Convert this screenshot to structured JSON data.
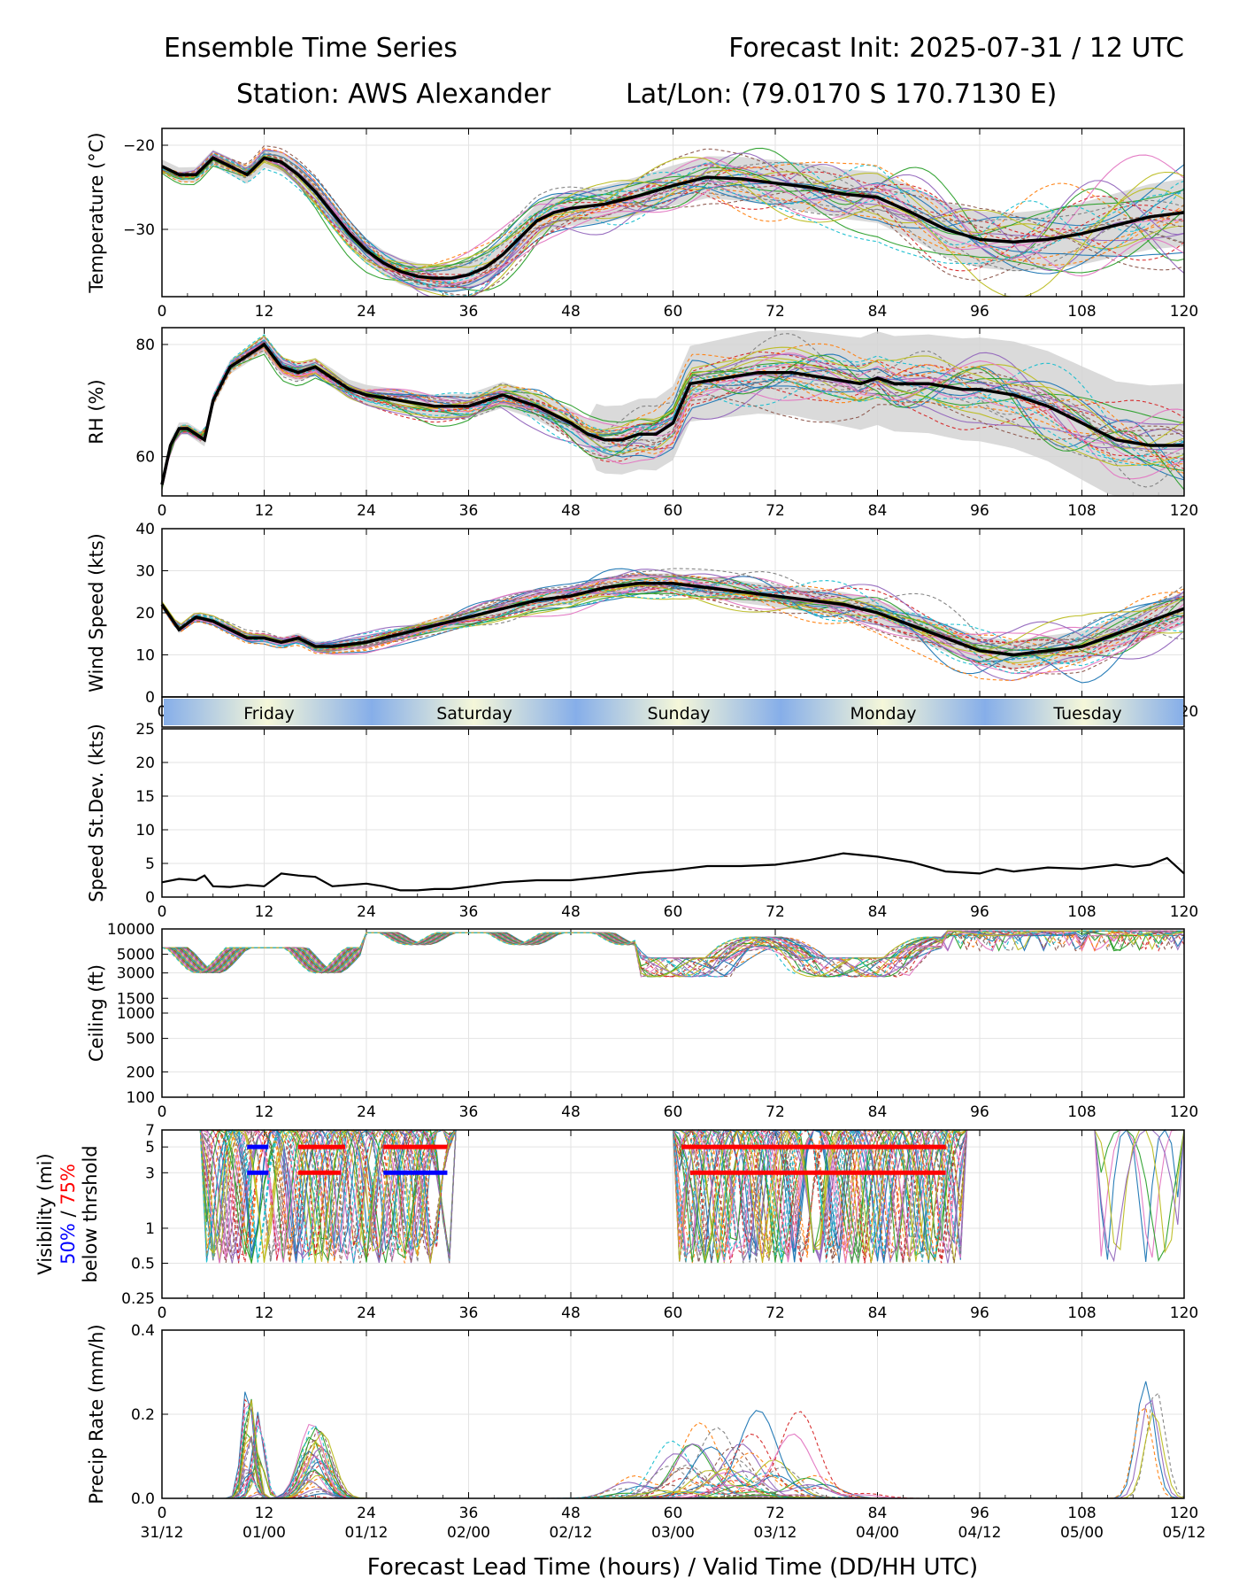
{
  "header": {
    "left_title": "Ensemble Time Series",
    "right_title": "Forecast Init: 2025-07-31 / 12 UTC",
    "station": "Station: AWS Alexander",
    "latlon": "Lat/Lon: (79.0170 S 170.7130 E)"
  },
  "x_axis": {
    "lead_ticks": [
      0,
      12,
      24,
      36,
      48,
      60,
      72,
      84,
      96,
      108,
      120
    ],
    "valid_ticks": [
      "31/12",
      "01/00",
      "01/12",
      "02/00",
      "02/12",
      "03/00",
      "03/12",
      "04/00",
      "04/12",
      "05/00",
      "05/12"
    ],
    "label": "Forecast Lead Time (hours) / Valid Time (DD/HH UTC)",
    "range": [
      0,
      120
    ]
  },
  "day_strip": [
    "Friday",
    "Saturday",
    "Sunday",
    "Monday",
    "Tuesday"
  ],
  "colors": {
    "ensemble": [
      "#1f77b4",
      "#ff7f0e",
      "#2ca02c",
      "#d62728",
      "#9467bd",
      "#8c564b",
      "#e377c2",
      "#7f7f7f",
      "#bcbd22",
      "#17becf"
    ],
    "mean": "#000000",
    "spread": "#d3d3d3",
    "vis_50": "#0000ff",
    "vis_75": "#ff0000"
  },
  "chart_data": [
    {
      "type": "line",
      "ylabel": "Temperature (°C)",
      "ylim": [
        -38,
        -18
      ],
      "yticks": [
        -20,
        -30
      ],
      "grid": true,
      "series": [
        {
          "kind": "ensemble_mean",
          "x": [
            0,
            2,
            4,
            6,
            8,
            10,
            12,
            14,
            16,
            18,
            20,
            22,
            24,
            26,
            28,
            30,
            32,
            34,
            36,
            38,
            40,
            42,
            44,
            46,
            48,
            52,
            56,
            60,
            64,
            68,
            72,
            76,
            80,
            84,
            88,
            92,
            96,
            100,
            104,
            108,
            112,
            116,
            120
          ],
          "values": [
            -22.5,
            -23.5,
            -23.5,
            -21.5,
            -22.5,
            -23.5,
            -21.5,
            -22.0,
            -23.5,
            -25.5,
            -28.0,
            -30.5,
            -32.5,
            -34.0,
            -35.0,
            -35.6,
            -35.8,
            -35.8,
            -35.4,
            -34.5,
            -33.0,
            -31.0,
            -29.0,
            -28.0,
            -27.5,
            -27.0,
            -26.0,
            -24.8,
            -23.8,
            -24.0,
            -24.5,
            -25.0,
            -25.8,
            -26.2,
            -28.0,
            -30.0,
            -31.2,
            -31.5,
            -31.2,
            -30.5,
            -29.5,
            -28.5,
            -28.0
          ]
        }
      ]
    },
    {
      "type": "line",
      "ylabel": "RH (%)",
      "ylim": [
        53,
        83
      ],
      "yticks": [
        60,
        80
      ],
      "grid": true,
      "series": [
        {
          "kind": "ensemble_mean",
          "x": [
            0,
            1,
            2,
            3,
            4,
            5,
            6,
            8,
            10,
            12,
            14,
            16,
            18,
            20,
            22,
            24,
            28,
            32,
            36,
            40,
            44,
            48,
            50,
            52,
            54,
            56,
            58,
            60,
            62,
            66,
            70,
            74,
            78,
            82,
            84,
            86,
            90,
            94,
            96,
            100,
            104,
            108,
            112,
            116,
            120
          ],
          "values": [
            55,
            62,
            65,
            65,
            64,
            63,
            70,
            76,
            78,
            80,
            76,
            75,
            76,
            74,
            72,
            71,
            70,
            69,
            69,
            71,
            69,
            66,
            64,
            63,
            63,
            64,
            64,
            66,
            73,
            74,
            75,
            75,
            74,
            73,
            74,
            73,
            73,
            72,
            72,
            71,
            69,
            66,
            63,
            62,
            62
          ]
        }
      ]
    },
    {
      "type": "line",
      "ylabel": "Wind Speed (kts)",
      "ylim": [
        0,
        40
      ],
      "yticks": [
        0,
        10,
        20,
        30,
        40
      ],
      "grid": true,
      "series": [
        {
          "kind": "ensemble_mean",
          "x": [
            0,
            2,
            4,
            6,
            8,
            10,
            12,
            14,
            16,
            18,
            20,
            24,
            28,
            32,
            36,
            40,
            44,
            48,
            52,
            56,
            60,
            64,
            68,
            72,
            76,
            80,
            84,
            88,
            92,
            96,
            100,
            104,
            108,
            112,
            116,
            120
          ],
          "values": [
            22,
            16,
            19,
            18,
            16,
            14,
            14,
            13,
            14,
            12,
            12,
            13,
            15,
            17,
            19,
            21,
            23,
            24,
            26,
            27,
            27,
            26,
            25,
            24,
            23,
            22,
            20,
            17,
            14,
            11,
            10,
            11,
            12,
            15,
            18,
            21
          ]
        }
      ]
    },
    {
      "type": "line",
      "ylabel": "Speed St.Dev. (kts)",
      "ylim": [
        0,
        25
      ],
      "yticks": [
        0,
        5,
        10,
        15,
        20,
        25
      ],
      "grid": true,
      "series": [
        {
          "kind": "stdev",
          "x": [
            0,
            2,
            4,
            5,
            6,
            8,
            10,
            12,
            14,
            16,
            18,
            20,
            22,
            24,
            26,
            28,
            30,
            32,
            34,
            36,
            40,
            44,
            48,
            52,
            56,
            60,
            64,
            68,
            72,
            76,
            80,
            84,
            88,
            92,
            96,
            98,
            100,
            104,
            108,
            112,
            114,
            116,
            118,
            120
          ],
          "values": [
            2.2,
            2.7,
            2.5,
            3.2,
            1.6,
            1.5,
            1.8,
            1.6,
            3.5,
            3.2,
            3.0,
            1.6,
            1.8,
            2.0,
            1.6,
            1.0,
            1.0,
            1.2,
            1.2,
            1.5,
            2.2,
            2.5,
            2.5,
            3.0,
            3.6,
            4.0,
            4.6,
            4.6,
            4.8,
            5.5,
            6.5,
            6.0,
            5.2,
            3.8,
            3.5,
            4.2,
            3.8,
            4.4,
            4.2,
            4.8,
            4.5,
            4.8,
            5.8,
            3.5
          ]
        }
      ]
    },
    {
      "type": "line",
      "ylabel": "Ceiling (ft)",
      "scale": "log",
      "ylim": [
        100,
        10000
      ],
      "yticks": [
        100,
        200,
        500,
        1000,
        1500,
        3000,
        5000,
        10000
      ],
      "grid": true,
      "series": []
    },
    {
      "type": "line",
      "ylabel": "Visibility (mi)",
      "ylabel_line2_50": "50%",
      "ylabel_line2_sep": " / ",
      "ylabel_line2_75": "75%",
      "ylabel_line3": "below thrshold",
      "scale": "log",
      "ylim": [
        0.25,
        7
      ],
      "yticks": [
        0.25,
        0.5,
        1,
        3,
        5,
        7
      ],
      "grid": true,
      "threshold_bars": [
        {
          "threshold": 5,
          "segments": [
            {
              "x0": 10,
              "x1": 12.5,
              "pct": 50
            },
            {
              "x0": 16,
              "x1": 21.5,
              "pct": 75
            },
            {
              "x0": 26,
              "x1": 33.5,
              "pct": 75
            },
            {
              "x0": 61,
              "x1": 92,
              "pct": 75
            }
          ]
        },
        {
          "threshold": 3,
          "segments": [
            {
              "x0": 10,
              "x1": 12.5,
              "pct": 50
            },
            {
              "x0": 16,
              "x1": 21,
              "pct": 75
            },
            {
              "x0": 26,
              "x1": 33.5,
              "pct": 50
            },
            {
              "x0": 62,
              "x1": 92,
              "pct": 75
            }
          ]
        }
      ],
      "series": []
    },
    {
      "type": "line",
      "ylabel": "Precip Rate (mm/h)",
      "ylim": [
        0,
        0.4
      ],
      "yticks": [
        0.0,
        0.2,
        0.4
      ],
      "ytick_labels": [
        "0.0",
        "0.2",
        "0.4"
      ],
      "grid": true,
      "series": []
    }
  ]
}
